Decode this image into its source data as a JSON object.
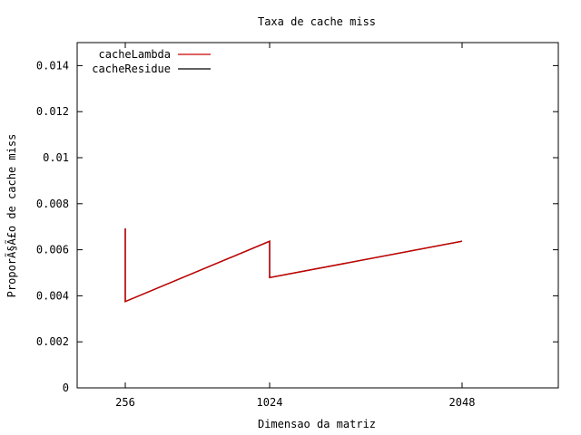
{
  "chart_data": {
    "type": "line",
    "title": "Taxa de cache miss",
    "xlabel": "Dimensao da matriz",
    "ylabel": "ProporÃ§Ã£o de cache miss",
    "xlim": [
      0,
      2560
    ],
    "ylim": [
      0,
      0.015
    ],
    "x_ticks": [
      256,
      1024,
      2048
    ],
    "x_tick_labels": [
      "256",
      "1024",
      "2048"
    ],
    "y_ticks": [
      0,
      0.002,
      0.004,
      0.006,
      0.008,
      0.01,
      0.012,
      0.014
    ],
    "y_tick_labels": [
      "0",
      "0.002",
      "0.004",
      "0.006",
      "0.008",
      "0.01",
      "0.012",
      "0.014"
    ],
    "grid": false,
    "legend_position": "top-left",
    "series": [
      {
        "name": "cacheLambda",
        "color": "#cc0000",
        "points": [
          [
            256,
            0.00693
          ],
          [
            256,
            0.00375
          ],
          [
            1024,
            0.00637
          ],
          [
            1024,
            0.00479
          ],
          [
            2048,
            0.00637
          ]
        ]
      },
      {
        "name": "cacheResidue",
        "color": "#000000",
        "points": [
          [
            256,
            0.00693
          ],
          [
            256,
            0.00375
          ],
          [
            1024,
            0.00637
          ],
          [
            1024,
            0.00479
          ],
          [
            2048,
            0.00637
          ]
        ]
      }
    ]
  }
}
